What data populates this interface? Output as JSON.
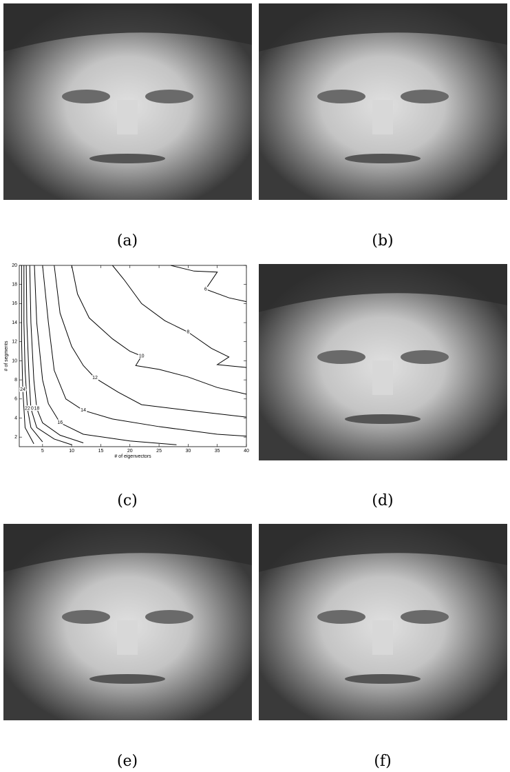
{
  "captions": [
    "(a)",
    "(b)",
    "(c)",
    "(d)",
    "(e)",
    "(f)"
  ],
  "chart_data": {
    "type": "contour",
    "xlabel": "# of eigenvectors",
    "ylabel": "# of segments",
    "xlim": [
      1,
      40
    ],
    "ylim": [
      1,
      20
    ],
    "xticks": [
      5,
      10,
      15,
      20,
      25,
      30,
      35,
      40
    ],
    "yticks": [
      2,
      4,
      6,
      8,
      10,
      12,
      14,
      16,
      18,
      20
    ],
    "color": "#000000",
    "series": [
      {
        "level": 6,
        "x": [
          27,
          31,
          35,
          33,
          37,
          40
        ],
        "y": [
          20,
          19.4,
          19.3,
          17.5,
          16.6,
          16.2
        ]
      },
      {
        "level": 8,
        "x": [
          17,
          19,
          22,
          26,
          30,
          34,
          37,
          35,
          40
        ],
        "y": [
          20,
          18.5,
          16,
          14.2,
          13,
          11.3,
          10.4,
          9.6,
          9.3
        ]
      },
      {
        "level": 10,
        "x": [
          10,
          11,
          13,
          17,
          20,
          22,
          21,
          25,
          30,
          35,
          40
        ],
        "y": [
          20,
          17,
          14.5,
          12.3,
          11,
          10.5,
          9.5,
          9.1,
          8.3,
          7.2,
          6.5
        ]
      },
      {
        "level": 12,
        "x": [
          7,
          8,
          10,
          12,
          14,
          18,
          22,
          30,
          40
        ],
        "y": [
          20,
          15,
          11.5,
          9.5,
          8.2,
          6.7,
          5.4,
          4.8,
          4.1
        ]
      },
      {
        "level": 14,
        "x": [
          5,
          6,
          7,
          9,
          12,
          17,
          25,
          35,
          40
        ],
        "y": [
          20,
          14,
          9,
          6,
          4.8,
          3.9,
          3.1,
          2.3,
          2.1
        ]
      },
      {
        "level": 16,
        "x": [
          3.6,
          4,
          5,
          6,
          8,
          12,
          20,
          28
        ],
        "y": [
          20,
          14,
          8,
          5.5,
          3.5,
          2.3,
          1.6,
          1.2
        ]
      },
      {
        "level": 18,
        "x": [
          2.8,
          3,
          3.5,
          4,
          5,
          8,
          12
        ],
        "y": [
          20,
          14,
          8,
          5,
          3.5,
          2.2,
          1.4
        ]
      },
      {
        "level": 20,
        "x": [
          2.2,
          2.3,
          2.7,
          3,
          4,
          7,
          10
        ],
        "y": [
          20,
          14,
          8,
          5,
          3,
          1.8,
          1.2
        ]
      },
      {
        "level": 22,
        "x": [
          1.8,
          1.8,
          2,
          2.4,
          3,
          5
        ],
        "y": [
          20,
          14,
          9,
          5,
          3,
          1.5
        ]
      },
      {
        "level": 24,
        "x": [
          1.4,
          1.4,
          1.6,
          2,
          3.5
        ],
        "y": [
          20,
          12,
          7,
          3,
          1.3
        ]
      }
    ]
  }
}
